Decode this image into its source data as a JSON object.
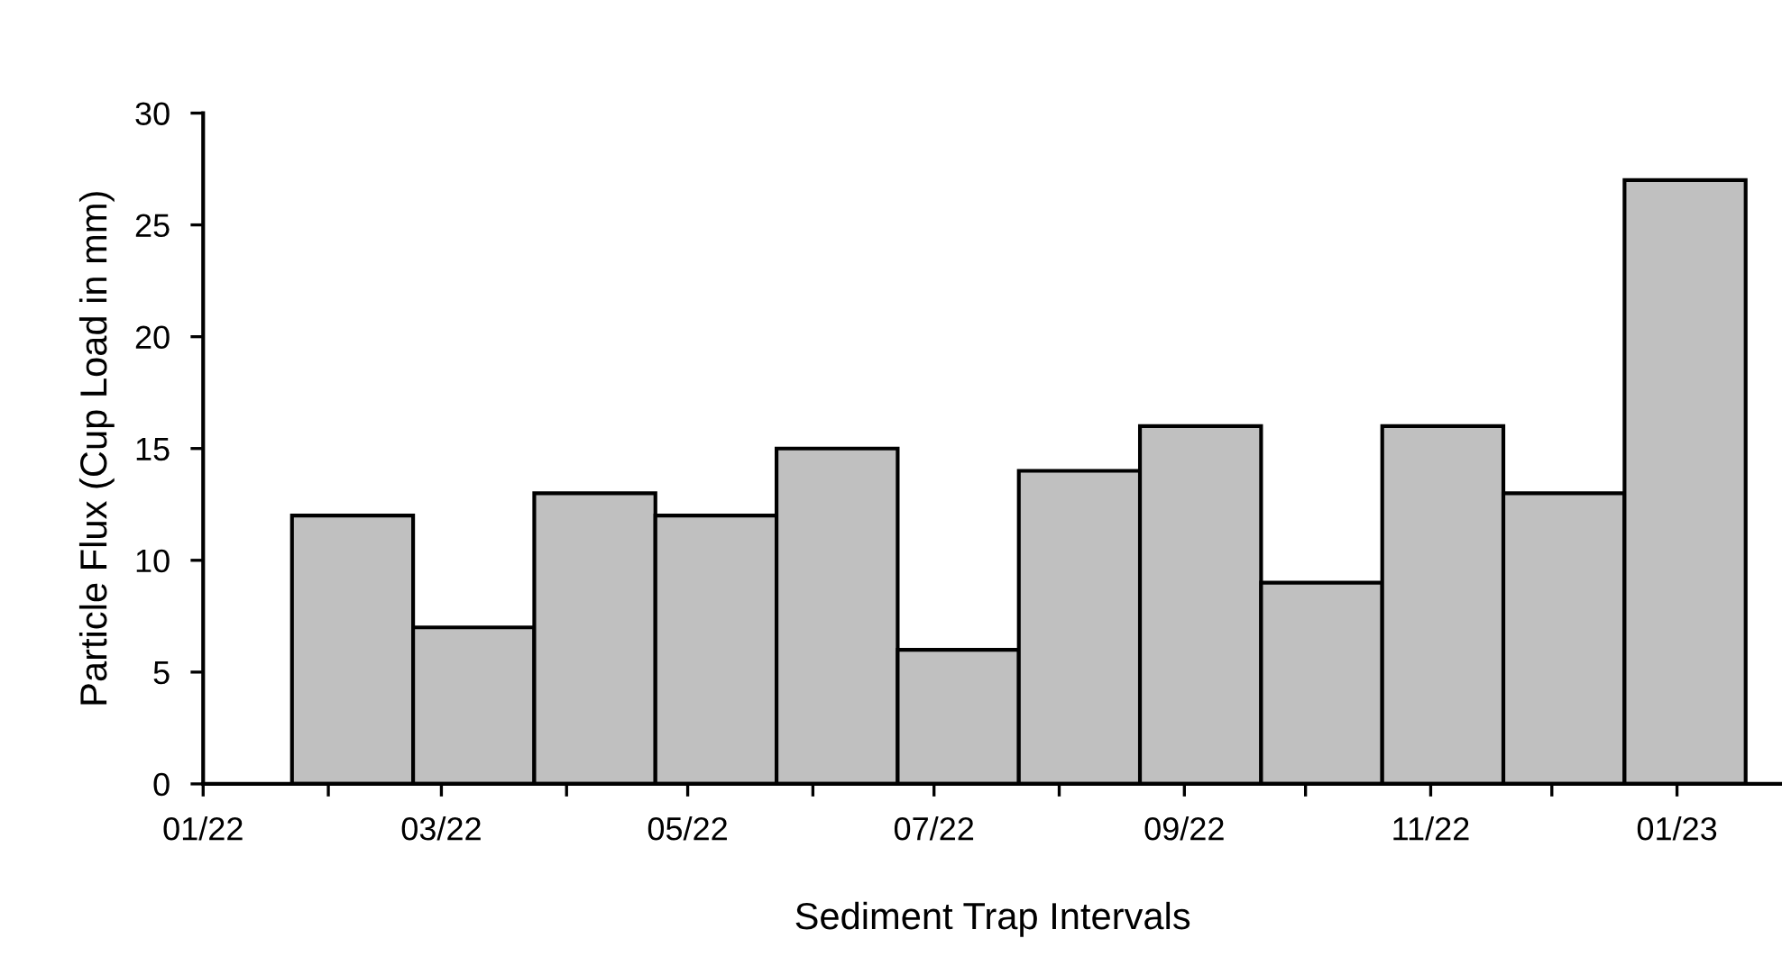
{
  "chart_data": {
    "type": "histogram",
    "xlabel": "Sediment Trap Intervals",
    "ylabel": "Particle Flux (Cup Load in mm)",
    "bins": [
      "2022-01-23",
      "2022-02-22",
      "2022-03-24",
      "2022-04-23",
      "2022-05-23",
      "2022-06-22",
      "2022-07-22",
      "2022-08-21",
      "2022-09-20",
      "2022-10-20",
      "2022-11-19",
      "2022-12-19",
      "2023-01-18"
    ],
    "values": [
      12,
      7,
      13,
      12,
      15,
      6,
      14,
      16,
      9,
      16,
      13,
      27
    ],
    "color": "#c0c0c0",
    "xlim": [
      "2022-01-01",
      "2023-01-27"
    ],
    "xticks": [
      {
        "value": "2022-01-01",
        "label": "01/22"
      },
      {
        "value": "2022-02-01",
        "label": null
      },
      {
        "value": "2022-03-01",
        "label": "03/22"
      },
      {
        "value": "2022-04-01",
        "label": null
      },
      {
        "value": "2022-05-01",
        "label": "05/22"
      },
      {
        "value": "2022-06-01",
        "label": null
      },
      {
        "value": "2022-07-01",
        "label": "07/22"
      },
      {
        "value": "2022-08-01",
        "label": null
      },
      {
        "value": "2022-09-01",
        "label": "09/22"
      },
      {
        "value": "2022-10-01",
        "label": null
      },
      {
        "value": "2022-11-01",
        "label": "11/22"
      },
      {
        "value": "2022-12-01",
        "label": null
      },
      {
        "value": "2023-01-01",
        "label": "01/23"
      }
    ],
    "ylim": [
      0,
      30
    ],
    "yticks": [
      0,
      5,
      10,
      15,
      20,
      25,
      30
    ],
    "grid": false,
    "legend": false
  }
}
